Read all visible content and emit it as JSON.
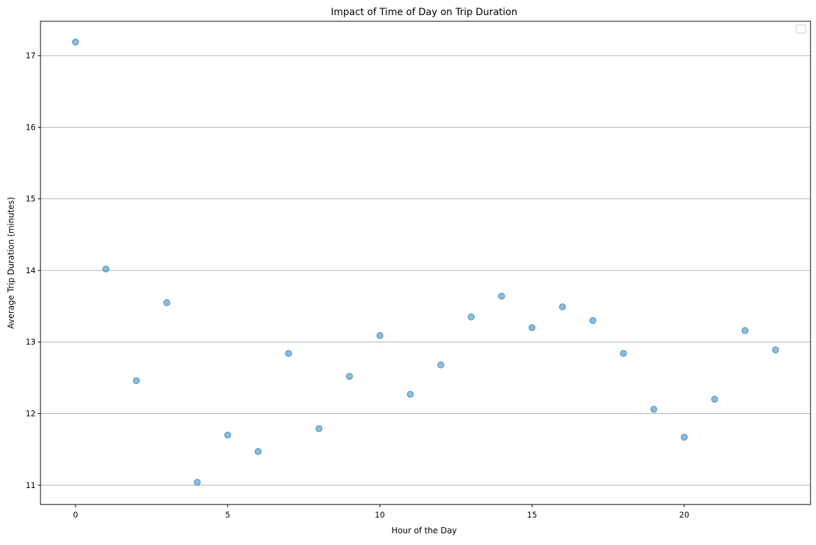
{
  "chart_data": {
    "type": "scatter",
    "title": "Impact of Time of Day on Trip Duration",
    "xlabel": "Hour of the Day",
    "ylabel": "Average Trip Duration (minutes)",
    "xlim": [
      -1.15,
      24.15
    ],
    "ylim": [
      10.73,
      17.48
    ],
    "xticks": [
      0,
      5,
      10,
      15,
      20
    ],
    "yticks": [
      11,
      12,
      13,
      14,
      15,
      16,
      17
    ],
    "grid": "horizontal",
    "legend": "top-right (empty)",
    "marker_color": "#1f77b4",
    "marker_opacity": 0.5,
    "x": [
      0,
      1,
      2,
      3,
      4,
      5,
      6,
      7,
      8,
      9,
      10,
      11,
      12,
      13,
      14,
      15,
      16,
      17,
      18,
      19,
      20,
      21,
      22,
      23
    ],
    "y": [
      17.19,
      14.02,
      12.46,
      13.55,
      11.04,
      11.7,
      11.47,
      12.84,
      11.79,
      12.52,
      13.09,
      12.27,
      12.68,
      13.35,
      13.64,
      13.2,
      13.49,
      13.3,
      12.84,
      12.06,
      11.67,
      12.2,
      13.16,
      12.89
    ]
  }
}
